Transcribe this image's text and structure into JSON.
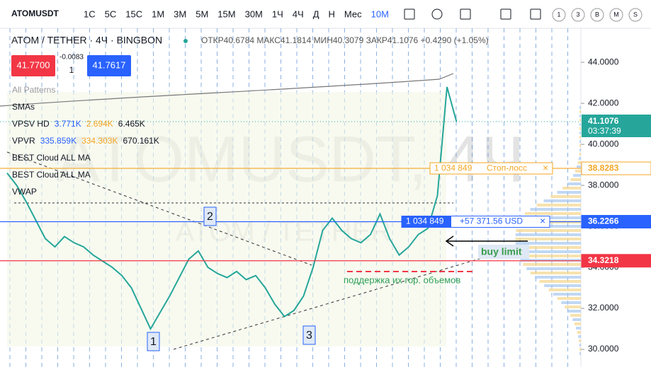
{
  "toolbar": {
    "symbol": "ATOMUSDT",
    "intervals": [
      "1С",
      "5С",
      "15С",
      "1М",
      "3М",
      "5М",
      "15М",
      "30М",
      "1Ч",
      "4Ч",
      "Д",
      "Н",
      "Мес"
    ],
    "active_range": "10М",
    "ranges": [
      "1",
      "3",
      "B",
      "M",
      "S"
    ]
  },
  "legend": {
    "title": "ATOM / TETHER · 4Ч · BINGBON",
    "ohlc": "ОТКР40.6784 МАКС41.1814 МИН40.3079 ЗАКР41.1076 +0.4290 (+1.05%)",
    "sell": "41.7700",
    "spread": "-0.0083",
    "qty": "1",
    "buy": "41.7617",
    "indicators": [
      [
        "All Patterns"
      ],
      [
        "SMAs"
      ],
      [
        "VPSV HD",
        "3.771K",
        "2.694K",
        "6.465K"
      ],
      [
        "VPVR",
        "335.859K",
        "334.303K",
        "670.161K"
      ],
      [
        "BEST Cloud ALL MA"
      ],
      [
        "BEST Cloud ALL MA"
      ],
      [
        "VWAP"
      ]
    ]
  },
  "chart_data": {
    "type": "line",
    "watermark": "ATOMUSDT, 4Ч",
    "watermark_sub": "ATOM / TETHER",
    "values": [
      38.6,
      38.0,
      37.2,
      36.3,
      35.4,
      35.0,
      35.5,
      35.2,
      35.0,
      34.6,
      34.3,
      34.0,
      33.6,
      33.0,
      32.0,
      31.0,
      31.8,
      32.6,
      33.5,
      34.4,
      34.8,
      34.0,
      33.7,
      33.5,
      33.8,
      33.4,
      33.6,
      33.0,
      32.2,
      31.6,
      31.9,
      32.6,
      34.0,
      35.8,
      36.4,
      35.8,
      35.4,
      35.2,
      35.6,
      36.6,
      35.4,
      34.6,
      35.0,
      35.6,
      35.9,
      37.5,
      42.8,
      41.1
    ],
    "color": "#26a69a",
    "ylim": [
      29.14,
      45.66
    ],
    "yticks": [
      {
        "value": 30,
        "label": "30.0000"
      },
      {
        "value": 32,
        "label": "32.0000"
      },
      {
        "value": 34,
        "label": "34.0000"
      },
      {
        "value": 36,
        "label": "36.0000"
      },
      {
        "value": 38,
        "label": "38.0000"
      },
      {
        "value": 40,
        "label": "40.0000"
      },
      {
        "value": 42,
        "label": "42.0000"
      },
      {
        "value": 44,
        "label": "44.0000"
      }
    ],
    "last": {
      "value": 41.1076,
      "label": "41.1076",
      "countdown": "03:37:39"
    },
    "levels": [
      {
        "value": 38.8283,
        "label": "38.8283",
        "color": "#f5a623"
      },
      {
        "value": 36.2266,
        "label": "36.2266",
        "color": "#2962ff"
      },
      {
        "value": 34.3218,
        "label": "34.3218",
        "color": "#f23645"
      }
    ],
    "orders": [
      {
        "qty": "1 034 849",
        "text": "Стоп-лосс",
        "close": "×"
      },
      {
        "qty": "1 034 849",
        "text": "+57 371.56 USD",
        "close": "×"
      }
    ],
    "annotations": {
      "buy": "buy limit",
      "support": "поддержка их гор. объемов",
      "waves": [
        "1",
        "2",
        "3"
      ]
    }
  }
}
